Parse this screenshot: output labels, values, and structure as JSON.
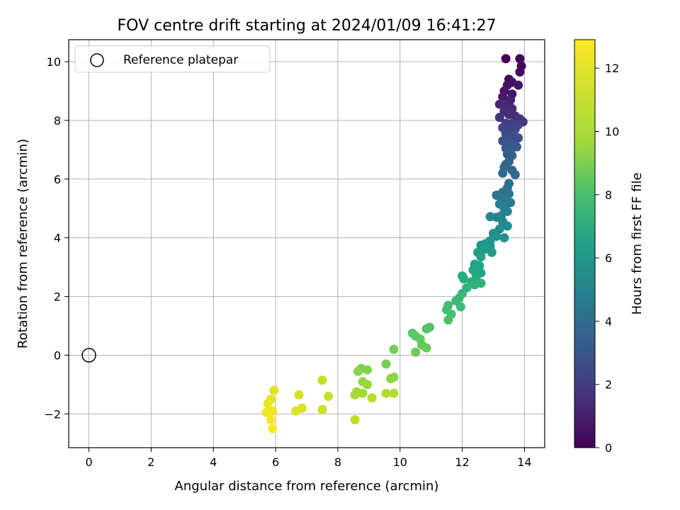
{
  "chart_data": {
    "type": "scatter",
    "title": "FOV centre drift starting at 2024/01/09 16:41:27",
    "xlabel": "Angular distance from reference (arcmin)",
    "ylabel": "Rotation from reference (arcmin)",
    "xlim": [
      -0.65,
      14.65
    ],
    "ylim": [
      -3.15,
      10.75
    ],
    "xticks": [
      0,
      2,
      4,
      6,
      8,
      10,
      12,
      14
    ],
    "yticks": [
      -2,
      0,
      2,
      4,
      6,
      8,
      10
    ],
    "grid": true,
    "colorbar": {
      "label": "Hours from first FF file",
      "range": [
        0,
        12.9
      ],
      "ticks": [
        0,
        2,
        4,
        6,
        8,
        10,
        12
      ],
      "colormap": "viridis"
    },
    "legend": {
      "position": "top-left",
      "entries": [
        "Reference platepar"
      ]
    },
    "reference_point": {
      "x": 0,
      "y": 0
    },
    "series": [
      {
        "fields": [
          "x",
          "y",
          "hours"
        ],
        "points": [
          [
            13.4,
            10.1,
            0.0
          ],
          [
            13.85,
            10.1,
            0.1
          ],
          [
            13.9,
            9.85,
            0.2
          ],
          [
            13.85,
            9.65,
            0.3
          ],
          [
            13.5,
            9.4,
            0.4
          ],
          [
            13.6,
            9.3,
            0.5
          ],
          [
            13.45,
            9.2,
            0.6
          ],
          [
            13.8,
            9.2,
            0.7
          ],
          [
            13.35,
            9.0,
            0.8
          ],
          [
            13.6,
            8.9,
            0.9
          ],
          [
            13.3,
            8.8,
            1.0
          ],
          [
            13.55,
            8.7,
            1.1
          ],
          [
            13.5,
            8.6,
            1.2
          ],
          [
            13.2,
            8.55,
            1.3
          ],
          [
            13.4,
            8.5,
            1.4
          ],
          [
            13.6,
            8.4,
            1.5
          ],
          [
            13.35,
            8.3,
            1.6
          ],
          [
            13.5,
            8.2,
            1.7
          ],
          [
            13.7,
            8.15,
            1.8
          ],
          [
            13.2,
            8.1,
            1.9
          ],
          [
            13.85,
            8.05,
            2.0
          ],
          [
            13.95,
            7.95,
            2.1
          ],
          [
            13.4,
            7.9,
            2.2
          ],
          [
            13.6,
            7.9,
            2.3
          ],
          [
            13.8,
            7.85,
            2.4
          ],
          [
            13.5,
            7.8,
            2.5
          ],
          [
            13.3,
            7.75,
            2.6
          ],
          [
            13.7,
            7.7,
            2.7
          ],
          [
            13.55,
            7.6,
            2.8
          ],
          [
            13.4,
            7.55,
            2.9
          ],
          [
            13.65,
            7.5,
            3.0
          ],
          [
            13.8,
            7.4,
            3.1
          ],
          [
            13.5,
            7.35,
            3.2
          ],
          [
            13.3,
            7.3,
            3.3
          ],
          [
            13.6,
            7.2,
            3.4
          ],
          [
            13.75,
            7.1,
            3.5
          ],
          [
            13.4,
            7.05,
            3.6
          ],
          [
            13.55,
            6.95,
            3.7
          ],
          [
            13.45,
            6.85,
            3.8
          ],
          [
            13.6,
            6.8,
            3.9
          ],
          [
            13.5,
            6.6,
            4.0
          ],
          [
            13.4,
            6.5,
            4.1
          ],
          [
            13.35,
            6.4,
            4.2
          ],
          [
            13.6,
            6.3,
            4.3
          ],
          [
            13.3,
            6.2,
            4.4
          ],
          [
            13.7,
            6.15,
            4.5
          ],
          [
            13.5,
            5.85,
            4.6
          ],
          [
            13.45,
            5.7,
            4.7
          ],
          [
            13.3,
            5.55,
            4.8
          ],
          [
            13.5,
            5.5,
            4.9
          ],
          [
            13.1,
            5.45,
            5.0
          ],
          [
            13.25,
            5.35,
            5.1
          ],
          [
            13.4,
            5.3,
            5.2
          ],
          [
            13.55,
            5.2,
            5.3
          ],
          [
            13.2,
            5.15,
            5.4
          ],
          [
            13.35,
            5.0,
            5.5
          ],
          [
            13.45,
            4.9,
            5.6
          ],
          [
            13.25,
            4.75,
            5.7
          ],
          [
            13.1,
            4.7,
            5.8
          ],
          [
            12.9,
            4.72,
            5.9
          ],
          [
            13.3,
            4.55,
            6.0
          ],
          [
            13.45,
            4.4,
            6.1
          ],
          [
            13.2,
            4.3,
            6.2
          ],
          [
            13.0,
            4.15,
            6.3
          ],
          [
            13.1,
            4.05,
            6.4
          ],
          [
            13.35,
            4.0,
            6.5
          ],
          [
            12.9,
            3.9,
            6.6
          ],
          [
            12.75,
            3.8,
            6.7
          ],
          [
            12.6,
            3.75,
            6.8
          ],
          [
            12.9,
            3.7,
            6.9
          ],
          [
            12.7,
            3.6,
            7.0
          ],
          [
            12.5,
            3.5,
            7.1
          ],
          [
            12.95,
            3.5,
            7.2
          ],
          [
            12.6,
            3.35,
            7.3
          ],
          [
            12.4,
            3.1,
            7.4
          ],
          [
            12.55,
            3.05,
            7.5
          ],
          [
            12.35,
            2.9,
            7.6
          ],
          [
            12.6,
            2.8,
            7.7
          ],
          [
            12.45,
            2.7,
            7.8
          ],
          [
            12.0,
            2.7,
            7.9
          ],
          [
            12.05,
            2.6,
            8.0
          ],
          [
            12.3,
            2.5,
            8.1
          ],
          [
            12.6,
            2.45,
            8.2
          ],
          [
            12.4,
            2.4,
            8.3
          ],
          [
            12.15,
            2.3,
            8.4
          ],
          [
            12.0,
            2.1,
            8.5
          ],
          [
            11.9,
            1.95,
            8.6
          ],
          [
            11.8,
            1.85,
            8.7
          ],
          [
            11.95,
            1.65,
            8.8
          ],
          [
            11.55,
            1.7,
            8.9
          ],
          [
            11.5,
            1.55,
            9.0
          ],
          [
            11.65,
            1.4,
            9.1
          ],
          [
            11.55,
            1.2,
            9.2
          ],
          [
            10.95,
            0.95,
            9.3
          ],
          [
            10.85,
            0.9,
            9.4
          ],
          [
            10.4,
            0.75,
            9.5
          ],
          [
            10.5,
            0.65,
            9.6
          ],
          [
            10.65,
            0.55,
            9.7
          ],
          [
            10.7,
            0.35,
            9.8
          ],
          [
            10.85,
            0.25,
            9.9
          ],
          [
            10.5,
            0.1,
            10.0
          ],
          [
            9.8,
            0.2,
            10.1
          ],
          [
            9.55,
            -0.3,
            10.2
          ],
          [
            8.75,
            -0.45,
            10.3
          ],
          [
            8.95,
            -0.5,
            10.4
          ],
          [
            8.65,
            -0.55,
            10.5
          ],
          [
            9.8,
            -0.75,
            10.6
          ],
          [
            9.7,
            -0.8,
            10.7
          ],
          [
            8.8,
            -0.9,
            10.8
          ],
          [
            8.95,
            -1.0,
            10.9
          ],
          [
            8.6,
            -1.25,
            11.0
          ],
          [
            8.8,
            -1.3,
            11.1
          ],
          [
            8.55,
            -1.35,
            11.2
          ],
          [
            9.55,
            -1.3,
            11.3
          ],
          [
            9.8,
            -1.3,
            11.4
          ],
          [
            9.1,
            -1.45,
            11.5
          ],
          [
            8.55,
            -2.2,
            11.6
          ],
          [
            7.5,
            -0.85,
            11.7
          ],
          [
            7.7,
            -1.4,
            11.8
          ],
          [
            7.5,
            -1.85,
            11.9
          ],
          [
            6.75,
            -1.35,
            12.0
          ],
          [
            6.85,
            -1.8,
            12.1
          ],
          [
            6.65,
            -1.9,
            12.2
          ],
          [
            5.95,
            -1.2,
            12.3
          ],
          [
            5.85,
            -1.5,
            12.4
          ],
          [
            5.75,
            -1.65,
            12.5
          ],
          [
            5.9,
            -1.9,
            12.6
          ],
          [
            5.7,
            -1.95,
            12.7
          ],
          [
            5.85,
            -2.2,
            12.8
          ],
          [
            5.9,
            -2.5,
            12.9
          ]
        ]
      }
    ]
  }
}
